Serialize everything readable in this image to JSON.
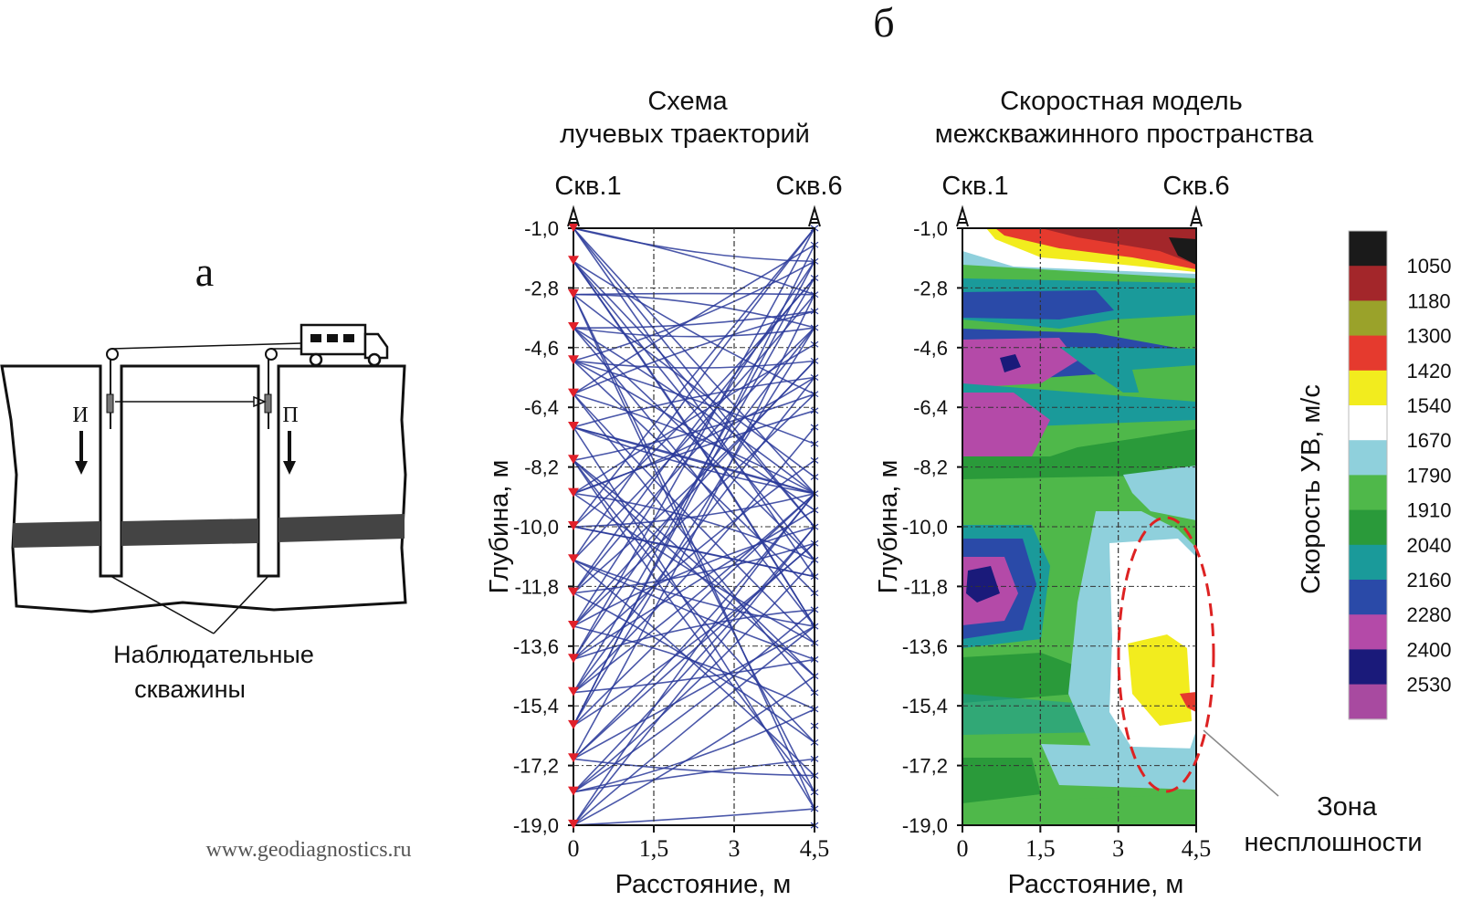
{
  "panel_b_label": "б",
  "panel_a": {
    "label": "а",
    "source_marker": "И",
    "receiver_marker": "П",
    "caption_line1": "Наблюдательные",
    "caption_line2": "скважины",
    "watermark": "www.geodiagnostics.ru"
  },
  "left_chart": {
    "title_line1": "Схема",
    "title_line2": "лучевых траекторий",
    "well_left": "Скв.1",
    "well_right": "Скв.6",
    "ylabel": "Глубина, м",
    "xlabel": "Расстояние, м"
  },
  "right_chart": {
    "title_line1": "Скоростная модель",
    "title_line2": "межскважинного пространства",
    "well_left": "Скв.1",
    "well_right": "Скв.6",
    "ylabel": "Глубина, м",
    "xlabel": "Расстояние, м",
    "zone_label_line1": "Зона",
    "zone_label_line2": "несплошности"
  },
  "axis": {
    "y_ticks": [
      "-1,0",
      "-2,8",
      "-4,6",
      "-6,4",
      "-8,2",
      "-10,0",
      "-11,8",
      "-13,6",
      "-15,4",
      "-17,2",
      "-19,0"
    ],
    "x_ticks": [
      "0",
      "1,5",
      "3",
      "4,5"
    ]
  },
  "legend": {
    "title": "Скорость УВ, м/с",
    "values": [
      "1050",
      "1180",
      "1300",
      "1420",
      "1540",
      "1670",
      "1790",
      "1910",
      "2040",
      "2160",
      "2280",
      "2400",
      "2530"
    ],
    "colors": [
      "#1a1a1a",
      "#a3262a",
      "#9aa22a",
      "#e53a2e",
      "#f2ec1e",
      "#ffffff",
      "#8fd0dc",
      "#4fb84a",
      "#2a9a3a",
      "#1a9a9a",
      "#2a4aa8",
      "#b44aa8",
      "#1a1a7a",
      "#a84aa0"
    ]
  },
  "chart_data": {
    "type": "heatmap",
    "title": "Скоростная модель межскважинного пространства",
    "xlabel": "Расстояние, м",
    "ylabel": "Глубина, м",
    "xlim": [
      0,
      4.5
    ],
    "ylim": [
      -19.0,
      -1.0
    ],
    "grid": true
  }
}
